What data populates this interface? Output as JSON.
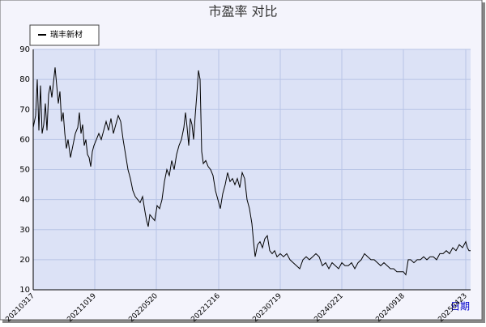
{
  "chart_data": {
    "type": "line",
    "title": "市盈率  对比",
    "x_label": "日期",
    "legend_position": "top-left",
    "grid": true,
    "xlim": [
      0,
      540
    ],
    "xticks": [
      {
        "value": 0,
        "label": "20210317"
      },
      {
        "value": 76,
        "label": "20211019"
      },
      {
        "value": 152,
        "label": "20220520"
      },
      {
        "value": 229,
        "label": "20221216"
      },
      {
        "value": 305,
        "label": "20230719"
      },
      {
        "value": 381,
        "label": "20240221"
      },
      {
        "value": 457,
        "label": "20240918"
      },
      {
        "value": 534,
        "label": "20250423"
      }
    ],
    "ylim": [
      10,
      90
    ],
    "yticks": [
      10,
      20,
      30,
      40,
      50,
      60,
      70,
      80,
      90
    ],
    "x": [
      0,
      3,
      5,
      7,
      9,
      11,
      13,
      15,
      17,
      19,
      21,
      23,
      25,
      27,
      29,
      31,
      33,
      35,
      37,
      39,
      41,
      43,
      46,
      49,
      52,
      55,
      57,
      59,
      61,
      63,
      65,
      67,
      69,
      71,
      73,
      75,
      78,
      81,
      84,
      87,
      90,
      93,
      96,
      99,
      102,
      105,
      108,
      111,
      114,
      117,
      120,
      123,
      126,
      129,
      132,
      135,
      138,
      140,
      142,
      144,
      147,
      150,
      153,
      156,
      159,
      162,
      165,
      168,
      171,
      174,
      177,
      180,
      183,
      186,
      188,
      190,
      192,
      194,
      196,
      198,
      200,
      202,
      204,
      206,
      208,
      210,
      213,
      216,
      219,
      222,
      225,
      228,
      231,
      234,
      237,
      240,
      243,
      246,
      249,
      252,
      255,
      258,
      261,
      264,
      267,
      270,
      272,
      274,
      277,
      280,
      283,
      286,
      289,
      292,
      295,
      298,
      301,
      305,
      309,
      313,
      317,
      321,
      325,
      329,
      333,
      337,
      341,
      345,
      349,
      353,
      357,
      361,
      365,
      369,
      373,
      377,
      381,
      385,
      389,
      393,
      397,
      401,
      405,
      409,
      413,
      417,
      421,
      425,
      429,
      433,
      437,
      441,
      445,
      449,
      453,
      457,
      460,
      463,
      466,
      470,
      474,
      478,
      482,
      486,
      490,
      494,
      498,
      502,
      506,
      510,
      514,
      518,
      522,
      526,
      530,
      534,
      536,
      538,
      540
    ],
    "series": [
      {
        "name": "瑞丰新材",
        "color": "#000000",
        "values": [
          64,
          68,
          80,
          63,
          78,
          62,
          65,
          72,
          63,
          75,
          78,
          74,
          79,
          84,
          78,
          72,
          76,
          66,
          69,
          62,
          57,
          60,
          54,
          58,
          62,
          64,
          69,
          62,
          65,
          58,
          60,
          55,
          54,
          51,
          56,
          58,
          60,
          62,
          60,
          63,
          66,
          63,
          67,
          62,
          65,
          68,
          66,
          60,
          55,
          50,
          47,
          43,
          41,
          40,
          39,
          41,
          36,
          33,
          31,
          35,
          34,
          33,
          38,
          37,
          40,
          46,
          50,
          48,
          53,
          50,
          55,
          58,
          60,
          64,
          69,
          64,
          58,
          67,
          65,
          60,
          68,
          75,
          83,
          80,
          56,
          52,
          53,
          51,
          50,
          48,
          43,
          40,
          37,
          42,
          45,
          49,
          46,
          47,
          45,
          47,
          44,
          49,
          47,
          40,
          37,
          32,
          26,
          21,
          25,
          26,
          24,
          27,
          28,
          23,
          22,
          23,
          21,
          22,
          21,
          22,
          20,
          19,
          18,
          17,
          20,
          21,
          20,
          21,
          22,
          21,
          18,
          19,
          17,
          19,
          18,
          17,
          19,
          18,
          18,
          19,
          17,
          19,
          20,
          22,
          21,
          20,
          20,
          19,
          18,
          19,
          18,
          17,
          17,
          16,
          16,
          16,
          15,
          20,
          20,
          19,
          20,
          20,
          21,
          20,
          21,
          21,
          20,
          22,
          22,
          23,
          22,
          24,
          23,
          25,
          24,
          26,
          24,
          23,
          23
        ]
      }
    ]
  }
}
